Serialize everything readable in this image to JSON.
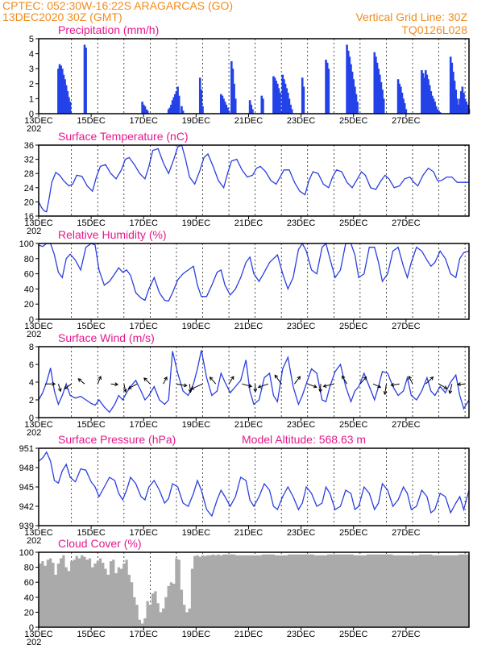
{
  "header": {
    "line1": "CPTEC:   052:30W-16:22S   ARAGARCAS (GO)",
    "line2": "13DEC2020 30Z (GMT)",
    "right1": "Vertical Grid Line: 30Z",
    "right2": "TQ0126L028"
  },
  "date_labels": [
    "13DEC",
    "15DEC",
    "17DEC",
    "19DEC",
    "21DEC",
    "23DEC",
    "25DEC",
    "27DEC"
  ],
  "date_stub": "202",
  "colors": {
    "line": "#2b3fe0",
    "bar": "#2342e8",
    "title": "#e6188c",
    "header": "#f08c1e",
    "cloud": "#aaaaaa"
  },
  "chart_data": [
    {
      "type": "bar",
      "title": "Precipitation (mm/h)",
      "ylim": [
        0,
        5
      ],
      "yticks": [
        0,
        1,
        2,
        3,
        4,
        5
      ],
      "x_unit": "days since 13DEC 00Z",
      "x": [
        0.75,
        0.8,
        0.85,
        0.9,
        0.95,
        1.0,
        1.05,
        1.1,
        1.15,
        1.2,
        1.75,
        1.8,
        3.95,
        4.0,
        4.05,
        4.1,
        4.15,
        4.95,
        5.0,
        5.05,
        5.1,
        5.15,
        5.2,
        5.25,
        5.3,
        5.35,
        5.45,
        5.5,
        6.15,
        6.2,
        6.25,
        6.95,
        7.0,
        7.05,
        7.1,
        7.15,
        7.2,
        7.25,
        7.35,
        7.4,
        7.45,
        7.5,
        8.05,
        8.1,
        8.15,
        8.5,
        8.55,
        8.95,
        9.0,
        9.05,
        9.1,
        9.15,
        9.2,
        9.3,
        9.35,
        9.4,
        9.45,
        9.5,
        9.55,
        9.6,
        9.65,
        10.05,
        10.1,
        10.95,
        11.0,
        11.05,
        11.75,
        11.8,
        11.85,
        11.9,
        11.95,
        12.0,
        12.05,
        12.1,
        12.15,
        12.8,
        12.85,
        12.9,
        12.95,
        13.0,
        13.05,
        13.1,
        13.15,
        13.7,
        13.75,
        13.8,
        13.85,
        13.9,
        13.95,
        14.0,
        14.6,
        14.65,
        14.7,
        14.75,
        14.8,
        14.85,
        14.9,
        14.95,
        15.0,
        15.05,
        15.1,
        15.15,
        15.2,
        15.25,
        15.3,
        15.7,
        15.75,
        15.8,
        15.85,
        15.9,
        15.95,
        16.0,
        16.05,
        16.1,
        16.15,
        16.2,
        16.25,
        16.3,
        16.35,
        16.4
      ],
      "values": [
        3.0,
        3.3,
        3.2,
        3.0,
        2.6,
        2.3,
        1.9,
        1.5,
        1.1,
        0.8,
        4.6,
        4.4,
        0.8,
        0.6,
        0.5,
        0.3,
        0.2,
        0.3,
        0.4,
        0.6,
        0.9,
        1.1,
        1.3,
        1.5,
        1.8,
        1.2,
        0.5,
        0.2,
        2.4,
        1.6,
        0.5,
        1.3,
        1.2,
        1.0,
        0.8,
        0.6,
        0.4,
        0.2,
        3.5,
        3.0,
        2.0,
        1.0,
        0.9,
        0.6,
        0.3,
        1.2,
        1.0,
        2.5,
        2.4,
        2.2,
        2.0,
        1.7,
        1.4,
        2.6,
        2.3,
        2.0,
        1.7,
        1.4,
        1.0,
        0.6,
        0.3,
        2.4,
        1.8,
        3.6,
        3.4,
        3.0,
        4.6,
        4.2,
        3.8,
        3.3,
        2.8,
        2.3,
        1.8,
        1.3,
        0.8,
        4.1,
        3.8,
        3.4,
        3.0,
        2.6,
        2.1,
        1.6,
        1.0,
        2.3,
        2.0,
        1.8,
        1.4,
        1.0,
        0.7,
        0.3,
        2.9,
        2.7,
        2.4,
        2.9,
        2.6,
        2.3,
        1.9,
        1.5,
        1.2,
        1.0,
        0.8,
        0.5,
        0.3,
        0.2,
        0.1,
        3.8,
        3.4,
        2.8,
        2.2,
        1.6,
        1.0,
        0.6,
        1.0,
        1.5,
        1.8,
        1.4,
        1.0,
        0.8,
        0.6,
        0.3
      ]
    },
    {
      "type": "line",
      "title": "Surface Temperature (nC)",
      "ylim": [
        16,
        36
      ],
      "yticks": [
        16,
        20,
        24,
        28,
        32,
        36
      ],
      "x_unit": "days since 13DEC 00Z",
      "x": [
        0,
        0.1,
        0.2,
        0.3,
        0.4,
        0.5,
        0.65,
        0.8,
        0.95,
        1.15,
        1.3,
        1.45,
        1.65,
        1.85,
        2.05,
        2.2,
        2.35,
        2.55,
        2.75,
        2.95,
        3.15,
        3.3,
        3.45,
        3.65,
        3.85,
        4.05,
        4.2,
        4.35,
        4.55,
        4.75,
        4.95,
        5.15,
        5.3,
        5.45,
        5.6,
        5.75,
        5.95,
        6.15,
        6.3,
        6.45,
        6.65,
        6.85,
        7.05,
        7.2,
        7.35,
        7.55,
        7.75,
        7.95,
        8.15,
        8.3,
        8.45,
        8.65,
        8.85,
        9.05,
        9.2,
        9.35,
        9.55,
        9.75,
        9.95,
        10.15,
        10.3,
        10.45,
        10.65,
        10.85,
        11.05,
        11.2,
        11.35,
        11.55,
        11.75,
        11.95,
        12.15,
        12.3,
        12.45,
        12.65,
        12.85,
        13.05,
        13.2,
        13.35,
        13.55,
        13.75,
        13.95,
        14.15,
        14.3,
        14.45,
        14.65,
        14.85,
        15.05,
        15.2,
        15.35,
        15.55,
        15.75,
        15.95,
        16.15,
        16.4
      ],
      "values": [
        20,
        18.5,
        17.5,
        17.2,
        21,
        25.5,
        28.3,
        27.5,
        26,
        24.5,
        25,
        27.5,
        27.2,
        24.5,
        23,
        27,
        30,
        30.5,
        28,
        26.5,
        29,
        32,
        32.5,
        30.5,
        28,
        26.5,
        30,
        34.5,
        35,
        31,
        28,
        32,
        35.5,
        36,
        32,
        27,
        25,
        29,
        32.5,
        33.5,
        30,
        26,
        24,
        28,
        31.5,
        32,
        29,
        27,
        27.5,
        29.5,
        30,
        28.5,
        26,
        25,
        27,
        29,
        29,
        25.5,
        23,
        22,
        26,
        28.5,
        28,
        25,
        24,
        27,
        29,
        28.5,
        25.5,
        24,
        26.5,
        28.5,
        27.5,
        24,
        23.5,
        26,
        27.5,
        26.5,
        24,
        24.5,
        26.5,
        27,
        25.5,
        24.5,
        27.5,
        29.5,
        28.5,
        26,
        26,
        27,
        27,
        25.5,
        25.5,
        25.5
      ]
    },
    {
      "type": "line",
      "title": "Relative Humidity (%)",
      "ylim": [
        0,
        100
      ],
      "yticks": [
        0,
        20,
        40,
        60,
        80,
        100
      ],
      "x_unit": "days since 13DEC 00Z",
      "x": [
        0,
        0.15,
        0.3,
        0.45,
        0.6,
        0.75,
        0.9,
        1.05,
        1.2,
        1.4,
        1.6,
        1.8,
        2.0,
        2.15,
        2.3,
        2.5,
        2.7,
        2.9,
        3.05,
        3.2,
        3.35,
        3.5,
        3.7,
        3.9,
        4.05,
        4.2,
        4.4,
        4.6,
        4.8,
        4.95,
        5.1,
        5.3,
        5.5,
        5.7,
        5.9,
        6.05,
        6.2,
        6.4,
        6.6,
        6.8,
        6.95,
        7.1,
        7.3,
        7.5,
        7.7,
        7.9,
        8.05,
        8.2,
        8.4,
        8.6,
        8.8,
        8.95,
        9.1,
        9.3,
        9.5,
        9.7,
        9.9,
        10.05,
        10.2,
        10.4,
        10.6,
        10.8,
        10.95,
        11.1,
        11.3,
        11.5,
        11.7,
        11.9,
        12.05,
        12.2,
        12.4,
        12.6,
        12.8,
        12.95,
        13.1,
        13.3,
        13.5,
        13.7,
        13.9,
        14.05,
        14.2,
        14.4,
        14.6,
        14.8,
        14.95,
        15.1,
        15.3,
        15.5,
        15.7,
        15.9,
        16.05,
        16.2,
        16.4
      ],
      "values": [
        98,
        96,
        100,
        100,
        85,
        62,
        55,
        80,
        86,
        78,
        65,
        95,
        100,
        98,
        65,
        45,
        50,
        60,
        68,
        62,
        65,
        58,
        35,
        28,
        25,
        40,
        55,
        35,
        25,
        24,
        35,
        52,
        60,
        65,
        70,
        45,
        30,
        30,
        45,
        62,
        65,
        45,
        32,
        40,
        55,
        75,
        82,
        60,
        50,
        62,
        75,
        80,
        85,
        60,
        40,
        55,
        92,
        100,
        90,
        65,
        60,
        95,
        100,
        80,
        55,
        65,
        100,
        100,
        85,
        55,
        60,
        95,
        95,
        75,
        50,
        60,
        90,
        95,
        70,
        55,
        75,
        95,
        90,
        78,
        70,
        75,
        90,
        80,
        60,
        55,
        80,
        88,
        90
      ]
    },
    {
      "type": "line",
      "title": "Surface Wind (m/s)",
      "ylim": [
        0,
        8
      ],
      "yticks": [
        0,
        2,
        4,
        6,
        8
      ],
      "x_unit": "days since 13DEC 00Z",
      "x": [
        0,
        0.15,
        0.3,
        0.45,
        0.6,
        0.75,
        0.9,
        1.05,
        1.2,
        1.4,
        1.6,
        1.8,
        2.0,
        2.15,
        2.3,
        2.5,
        2.7,
        2.9,
        3.05,
        3.2,
        3.35,
        3.5,
        3.7,
        3.9,
        4.05,
        4.2,
        4.4,
        4.6,
        4.8,
        4.95,
        5.1,
        5.3,
        5.5,
        5.7,
        5.9,
        6.05,
        6.2,
        6.4,
        6.6,
        6.8,
        6.95,
        7.1,
        7.3,
        7.5,
        7.7,
        7.9,
        8.05,
        8.2,
        8.4,
        8.6,
        8.8,
        8.95,
        9.1,
        9.3,
        9.5,
        9.7,
        9.9,
        10.05,
        10.2,
        10.4,
        10.6,
        10.8,
        10.95,
        11.1,
        11.3,
        11.5,
        11.7,
        11.9,
        12.05,
        12.2,
        12.4,
        12.6,
        12.8,
        12.95,
        13.1,
        13.3,
        13.5,
        13.7,
        13.9,
        14.05,
        14.2,
        14.4,
        14.6,
        14.8,
        14.95,
        15.1,
        15.3,
        15.5,
        15.7,
        15.9,
        16.05,
        16.2,
        16.4
      ],
      "values": [
        2.0,
        2.8,
        4.0,
        5.6,
        3.0,
        1.5,
        2.5,
        3.8,
        2.5,
        2.2,
        2.4,
        2.0,
        1.6,
        1.4,
        2.0,
        1.2,
        0.6,
        1.5,
        2.5,
        2.0,
        2.8,
        3.5,
        4.2,
        3.0,
        2.0,
        2.5,
        3.5,
        2.0,
        1.5,
        2.0,
        7.5,
        5.0,
        3.0,
        2.5,
        3.8,
        5.5,
        7.6,
        4.5,
        2.5,
        3.0,
        5.0,
        4.0,
        2.8,
        3.5,
        4.2,
        6.5,
        3.0,
        1.5,
        2.0,
        4.5,
        5.0,
        2.5,
        1.8,
        5.5,
        6.8,
        3.5,
        1.5,
        2.5,
        3.8,
        5.5,
        5.0,
        2.0,
        1.8,
        3.5,
        5.2,
        6.0,
        3.5,
        1.8,
        3.0,
        3.5,
        5.0,
        3.5,
        2.0,
        3.5,
        5.2,
        5.0,
        3.5,
        2.5,
        3.0,
        4.5,
        2.5,
        2.0,
        3.0,
        4.5,
        3.0,
        2.5,
        3.5,
        2.8,
        4.0,
        4.8,
        2.5,
        1.0,
        2.0
      ]
    },
    {
      "type": "line",
      "title": "Surface Pressure (hPa)",
      "annotation": "Model Altitude: 568.63 m",
      "ylim": [
        939,
        951
      ],
      "yticks": [
        939,
        942,
        945,
        948,
        951
      ],
      "x_unit": "days since 13DEC 00Z",
      "x": [
        0,
        0.15,
        0.3,
        0.45,
        0.6,
        0.75,
        0.9,
        1.05,
        1.2,
        1.4,
        1.6,
        1.8,
        2.0,
        2.15,
        2.3,
        2.5,
        2.7,
        2.9,
        3.05,
        3.2,
        3.35,
        3.5,
        3.7,
        3.9,
        4.05,
        4.2,
        4.4,
        4.6,
        4.8,
        4.95,
        5.1,
        5.3,
        5.5,
        5.7,
        5.9,
        6.05,
        6.2,
        6.4,
        6.6,
        6.8,
        6.95,
        7.1,
        7.3,
        7.5,
        7.7,
        7.9,
        8.05,
        8.2,
        8.4,
        8.6,
        8.8,
        8.95,
        9.1,
        9.3,
        9.5,
        9.7,
        9.9,
        10.05,
        10.2,
        10.4,
        10.6,
        10.8,
        10.95,
        11.1,
        11.3,
        11.5,
        11.7,
        11.9,
        12.05,
        12.2,
        12.4,
        12.6,
        12.8,
        12.95,
        13.1,
        13.3,
        13.5,
        13.7,
        13.9,
        14.05,
        14.2,
        14.4,
        14.6,
        14.8,
        14.95,
        15.1,
        15.3,
        15.5,
        15.7,
        15.9,
        16.05,
        16.2,
        16.4
      ],
      "values": [
        949,
        949.5,
        950.4,
        949,
        946,
        945.6,
        947.5,
        948.5,
        946.5,
        945.8,
        947.8,
        947.6,
        945.8,
        945,
        943.5,
        945,
        946.5,
        946,
        944,
        943,
        944.5,
        946.5,
        945.5,
        943.5,
        943,
        945,
        946,
        944.5,
        942.5,
        943.2,
        945.5,
        945,
        942.5,
        942,
        944,
        946,
        944.5,
        941.5,
        940.5,
        943,
        944.5,
        943.5,
        942,
        943.5,
        946.5,
        946,
        943,
        942,
        943.5,
        945.5,
        944.5,
        942,
        941.5,
        943.5,
        945,
        943.5,
        941.5,
        942.5,
        945,
        944,
        942,
        942.5,
        945,
        944,
        941.5,
        942,
        944.5,
        944,
        941.5,
        942,
        945,
        944,
        941.5,
        942.5,
        945.5,
        944.5,
        942,
        943,
        945,
        944,
        941.5,
        942,
        944.5,
        943.5,
        941,
        941.5,
        944,
        943.5,
        941,
        942.5,
        943.5,
        941.5,
        944.5
      ]
    },
    {
      "type": "area",
      "title": "Cloud Cover (%)",
      "ylim": [
        0,
        100
      ],
      "yticks": [
        0,
        20,
        40,
        60,
        80,
        100
      ],
      "x_unit": "days since 13DEC 00Z",
      "x": [
        0,
        0.1,
        0.2,
        0.3,
        0.4,
        0.5,
        0.6,
        0.7,
        0.8,
        0.9,
        1.0,
        1.1,
        1.2,
        1.3,
        1.4,
        1.5,
        1.6,
        1.7,
        1.8,
        1.9,
        2.0,
        2.1,
        2.2,
        2.3,
        2.4,
        2.5,
        2.6,
        2.7,
        2.8,
        2.9,
        3.0,
        3.1,
        3.2,
        3.3,
        3.4,
        3.5,
        3.6,
        3.7,
        3.8,
        3.9,
        4.0,
        4.1,
        4.2,
        4.3,
        4.4,
        4.5,
        4.6,
        4.7,
        4.8,
        4.9,
        5.0,
        5.1,
        5.2,
        5.3,
        5.4,
        5.5,
        5.6,
        5.7,
        5.8,
        5.9,
        6.0,
        6.1,
        6.2,
        6.3,
        6.4,
        6.5,
        6.6,
        6.7,
        6.8,
        6.9,
        7.0,
        7.5,
        8.0,
        8.5,
        9.0,
        9.5,
        10.0,
        10.5,
        11.0,
        11.5,
        12.0,
        12.5,
        13.0,
        13.5,
        14.0,
        14.5,
        15.0,
        15.5,
        16.0,
        16.4
      ],
      "values": [
        85,
        88,
        82,
        90,
        92,
        86,
        70,
        85,
        92,
        96,
        80,
        75,
        88,
        90,
        95,
        92,
        96,
        94,
        90,
        92,
        80,
        85,
        88,
        92,
        86,
        78,
        70,
        88,
        90,
        72,
        80,
        78,
        85,
        90,
        70,
        60,
        40,
        30,
        10,
        5,
        12,
        35,
        30,
        45,
        48,
        32,
        20,
        25,
        40,
        55,
        60,
        58,
        92,
        90,
        50,
        30,
        20,
        25,
        78,
        95,
        96,
        94,
        96,
        95,
        96,
        96,
        97,
        96,
        97,
        96,
        97,
        96,
        96,
        97,
        96,
        97,
        97,
        96,
        97,
        97,
        96,
        97,
        97,
        96,
        96,
        97,
        96,
        96,
        97,
        96
      ]
    }
  ]
}
